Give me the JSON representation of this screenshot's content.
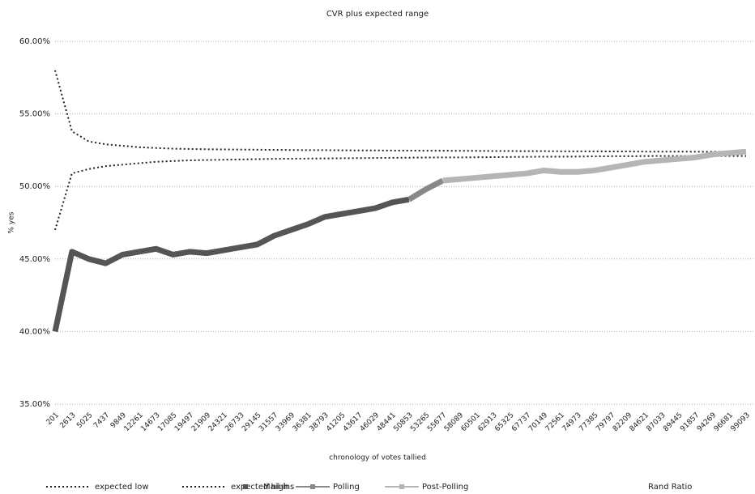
{
  "chart_data": {
    "type": "line",
    "title": "CVR plus expected range",
    "x_label": "chronology of votes tallied",
    "y_label": "% yes",
    "categories": [
      "201",
      "2613",
      "5025",
      "7437",
      "9849",
      "12261",
      "14673",
      "17085",
      "19497",
      "21909",
      "24321",
      "26733",
      "29145",
      "31557",
      "33969",
      "36381",
      "38793",
      "41205",
      "43617",
      "46029",
      "48441",
      "50853",
      "53265",
      "55677",
      "58089",
      "60501",
      "62913",
      "65325",
      "67737",
      "70149",
      "72561",
      "74973",
      "77385",
      "79797",
      "82209",
      "84621",
      "87033",
      "89445",
      "91857",
      "94269",
      "96681",
      "99093"
    ],
    "ylim": [
      35,
      60
    ],
    "yticks": [
      {
        "value": 35,
        "label": "35.00%"
      },
      {
        "value": 40,
        "label": "40.00%"
      },
      {
        "value": 45,
        "label": "45.00%"
      },
      {
        "value": 50,
        "label": "50.00%"
      },
      {
        "value": 55,
        "label": "55.00%"
      },
      {
        "value": 60,
        "label": "60.00%"
      }
    ],
    "grid": true,
    "legend": "bottom",
    "series": [
      {
        "name": "expected low",
        "color": "#222222",
        "style": "dotted",
        "values": [
          47,
          50.9,
          51.2,
          51.4,
          51.5,
          51.6,
          51.7,
          51.75,
          51.8,
          51.82,
          51.84,
          51.86,
          51.88,
          51.9,
          51.91,
          51.92,
          51.93,
          51.94,
          51.95,
          51.96,
          51.97,
          51.98,
          51.99,
          52.0,
          52.0,
          52.01,
          52.02,
          52.03,
          52.04,
          52.05,
          52.05,
          52.06,
          52.07,
          52.08,
          52.08,
          52.09,
          52.1,
          52.1,
          52.1,
          52.1,
          52.1,
          52.1
        ]
      },
      {
        "name": "expected high",
        "color": "#222222",
        "style": "dotted",
        "values": [
          58,
          53.8,
          53.1,
          52.9,
          52.8,
          52.7,
          52.65,
          52.6,
          52.58,
          52.56,
          52.55,
          52.54,
          52.53,
          52.52,
          52.51,
          52.5,
          52.5,
          52.49,
          52.48,
          52.48,
          52.47,
          52.47,
          52.46,
          52.46,
          52.45,
          52.45,
          52.44,
          52.44,
          52.43,
          52.43,
          52.42,
          52.42,
          52.42,
          52.41,
          52.41,
          52.4,
          52.4,
          52.4,
          52.39,
          52.39,
          52.38,
          52.38
        ]
      },
      {
        "name": "Mail-ins",
        "color": "#555555",
        "style": "thick",
        "values": [
          40,
          45.5,
          45,
          44.7,
          45.3,
          45.5,
          45.7,
          45.3,
          45.5,
          45.4,
          45.6,
          45.8,
          46.0,
          46.6,
          47.0,
          47.4,
          47.9,
          48.1,
          48.3,
          48.5,
          48.9,
          49.1,
          null,
          null,
          null,
          null,
          null,
          null,
          null,
          null,
          null,
          null,
          null,
          null,
          null,
          null,
          null,
          null,
          null,
          null,
          null,
          null
        ]
      },
      {
        "name": "Polling",
        "color": "#888888",
        "style": "thick",
        "values": [
          null,
          null,
          null,
          null,
          null,
          null,
          null,
          null,
          null,
          null,
          null,
          null,
          null,
          null,
          null,
          null,
          null,
          null,
          null,
          null,
          null,
          49.1,
          49.8,
          50.4,
          null,
          null,
          null,
          null,
          null,
          null,
          null,
          null,
          null,
          null,
          null,
          null,
          null,
          null,
          null,
          null,
          null,
          null
        ]
      },
      {
        "name": "Post-Polling",
        "color": "#b5b5b5",
        "style": "thick",
        "values": [
          null,
          null,
          null,
          null,
          null,
          null,
          null,
          null,
          null,
          null,
          null,
          null,
          null,
          null,
          null,
          null,
          null,
          null,
          null,
          null,
          null,
          null,
          null,
          50.4,
          50.5,
          50.6,
          50.7,
          50.8,
          50.9,
          51.1,
          51.0,
          51.0,
          51.1,
          51.3,
          51.5,
          51.7,
          51.8,
          51.9,
          52.0,
          52.2,
          52.3,
          52.4
        ]
      },
      {
        "name": "Rand Ratio",
        "values": [
          null,
          null,
          null,
          null,
          null,
          null,
          null,
          null,
          null,
          null,
          null,
          null,
          null,
          null,
          null,
          null,
          null,
          null,
          null,
          null,
          null,
          null,
          null,
          null,
          null,
          null,
          null,
          null,
          null,
          null,
          null,
          null,
          null,
          null,
          null,
          null,
          null,
          null,
          null,
          null,
          null,
          null
        ]
      }
    ]
  }
}
